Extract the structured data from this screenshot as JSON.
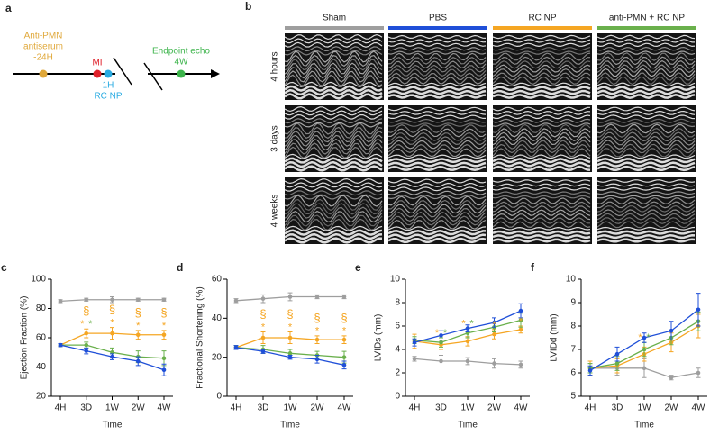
{
  "panel_a": {
    "letter": "a",
    "pretreatment": [
      "Anti-PMN",
      "antiserum",
      "-24H"
    ],
    "mi": "MI",
    "treatment": [
      "1H",
      "RC NP"
    ],
    "endpoint": [
      "Endpoint echo",
      "4W"
    ]
  },
  "panel_b": {
    "letter": "b",
    "columns": [
      {
        "label": "Sham",
        "color": "#9e9e9e"
      },
      {
        "label": "PBS",
        "color": "#1f4fd8"
      },
      {
        "label": "RC NP",
        "color": "#f5a623"
      },
      {
        "label": "anti-PMN + RC NP",
        "color": "#6ab04c"
      }
    ],
    "rows": [
      "4 hours",
      "3 days",
      "4 weeks"
    ]
  },
  "chart_data": [
    {
      "letter": "c",
      "type": "line",
      "ylabel": "Ejection Fraction (%)",
      "xlabel": "Time",
      "categories": [
        "4H",
        "3D",
        "1W",
        "2W",
        "4W"
      ],
      "ylim": [
        20,
        100
      ],
      "yticks": [
        20,
        40,
        60,
        80,
        100
      ],
      "series": [
        {
          "color": "#9e9e9e",
          "values": [
            85,
            86,
            86,
            86,
            86
          ],
          "errors": [
            1,
            1,
            2,
            1,
            1
          ]
        },
        {
          "color": "#f5a623",
          "values": [
            55,
            63,
            63,
            62,
            62
          ],
          "errors": [
            1,
            3,
            4,
            3,
            3
          ]
        },
        {
          "color": "#6ab04c",
          "values": [
            55,
            55,
            50,
            47,
            46
          ],
          "errors": [
            1,
            2,
            3,
            4,
            5
          ]
        },
        {
          "color": "#1f4fd8",
          "values": [
            55,
            51,
            47,
            44,
            38
          ],
          "errors": [
            1,
            2,
            2,
            3,
            4
          ]
        }
      ],
      "annotations": [
        {
          "text": "*",
          "x": "3D",
          "color": "#f5a623"
        },
        {
          "text": "*",
          "x": "3D",
          "color": "#6ab04c"
        },
        {
          "text": "*",
          "x": "1W",
          "color": "#f5a623"
        },
        {
          "text": "*",
          "x": "2W",
          "color": "#f5a623"
        },
        {
          "text": "*",
          "x": "4W",
          "color": "#f5a623"
        },
        {
          "text": "§",
          "x": "3D",
          "color": "#f5a623"
        },
        {
          "text": "§",
          "x": "1W",
          "color": "#f5a623"
        },
        {
          "text": "§",
          "x": "2W",
          "color": "#f5a623"
        },
        {
          "text": "§",
          "x": "4W",
          "color": "#f5a623"
        }
      ]
    },
    {
      "letter": "d",
      "type": "line",
      "ylabel": "Fractional Shortening (%)",
      "xlabel": "Time",
      "categories": [
        "4H",
        "3D",
        "1W",
        "2W",
        "4W"
      ],
      "ylim": [
        0,
        60
      ],
      "yticks": [
        0,
        20,
        40,
        60
      ],
      "series": [
        {
          "color": "#9e9e9e",
          "values": [
            49,
            50,
            51,
            51,
            51
          ],
          "errors": [
            1,
            2,
            2,
            1,
            1
          ]
        },
        {
          "color": "#f5a623",
          "values": [
            25,
            30,
            30,
            29,
            29
          ],
          "errors": [
            1,
            3,
            3,
            2,
            2
          ]
        },
        {
          "color": "#6ab04c",
          "values": [
            25,
            24,
            22,
            21,
            20
          ],
          "errors": [
            1,
            2,
            2,
            2,
            3
          ]
        },
        {
          "color": "#1f4fd8",
          "values": [
            25,
            23,
            20,
            19,
            16
          ],
          "errors": [
            1,
            1,
            1,
            2,
            2
          ]
        }
      ],
      "annotations": [
        {
          "text": "*",
          "x": "3D",
          "color": "#f5a623"
        },
        {
          "text": "*",
          "x": "1W",
          "color": "#f5a623"
        },
        {
          "text": "*",
          "x": "2W",
          "color": "#f5a623"
        },
        {
          "text": "*",
          "x": "4W",
          "color": "#f5a623"
        },
        {
          "text": "§",
          "x": "3D",
          "color": "#f5a623"
        },
        {
          "text": "§",
          "x": "1W",
          "color": "#f5a623"
        },
        {
          "text": "§",
          "x": "2W",
          "color": "#f5a623"
        },
        {
          "text": "§",
          "x": "4W",
          "color": "#f5a623"
        }
      ]
    },
    {
      "letter": "e",
      "type": "line",
      "ylabel": "LVIDs (mm)",
      "xlabel": "Time",
      "categories": [
        "4H",
        "3D",
        "1W",
        "2W",
        "4W"
      ],
      "ylim": [
        0,
        10
      ],
      "yticks": [
        0,
        2,
        4,
        6,
        8,
        10
      ],
      "series": [
        {
          "color": "#9e9e9e",
          "values": [
            3.2,
            3.0,
            3.0,
            2.8,
            2.7
          ],
          "errors": [
            0.2,
            0.5,
            0.3,
            0.4,
            0.3
          ]
        },
        {
          "color": "#f5a623",
          "values": [
            4.7,
            4.4,
            4.7,
            5.3,
            5.7
          ],
          "errors": [
            0.6,
            0.4,
            0.4,
            0.4,
            0.3
          ]
        },
        {
          "color": "#6ab04c",
          "values": [
            4.8,
            4.6,
            5.4,
            5.9,
            6.5
          ],
          "errors": [
            0.3,
            0.4,
            0.4,
            0.4,
            0.6
          ]
        },
        {
          "color": "#1f4fd8",
          "values": [
            4.6,
            5.2,
            5.8,
            6.3,
            7.3
          ],
          "errors": [
            0.3,
            0.4,
            0.3,
            0.4,
            0.6
          ]
        }
      ],
      "annotations": [
        {
          "text": "*",
          "x": "3D",
          "color": "#f5a623"
        },
        {
          "text": "*",
          "x": "3D",
          "color": "#6ab04c"
        },
        {
          "text": "*",
          "x": "1W",
          "color": "#f5a623"
        },
        {
          "text": "*",
          "x": "1W",
          "color": "#6ab04c"
        },
        {
          "text": "*",
          "x": "2W",
          "color": "#f5a623"
        },
        {
          "text": "*",
          "x": "4W",
          "color": "#f5a623"
        }
      ]
    },
    {
      "letter": "f",
      "type": "line",
      "ylabel": "LVIDd (mm)",
      "xlabel": "Time",
      "categories": [
        "4H",
        "3D",
        "1W",
        "2W",
        "4W"
      ],
      "ylim": [
        5,
        10
      ],
      "yticks": [
        5,
        6,
        7,
        8,
        9,
        10
      ],
      "series": [
        {
          "color": "#9e9e9e",
          "values": [
            6.2,
            6.2,
            6.2,
            5.8,
            6.0
          ],
          "errors": [
            0.2,
            0.3,
            0.4,
            0.1,
            0.2
          ]
        },
        {
          "color": "#f5a623",
          "values": [
            6.2,
            6.3,
            6.8,
            7.3,
            8.0
          ],
          "errors": [
            0.3,
            0.3,
            0.3,
            0.4,
            0.5
          ]
        },
        {
          "color": "#6ab04c",
          "values": [
            6.2,
            6.4,
            7.0,
            7.5,
            8.2
          ],
          "errors": [
            0.2,
            0.3,
            0.3,
            0.3,
            0.4
          ]
        },
        {
          "color": "#1f4fd8",
          "values": [
            6.1,
            6.8,
            7.5,
            7.8,
            8.7
          ],
          "errors": [
            0.2,
            0.3,
            0.2,
            0.4,
            0.7
          ]
        }
      ],
      "annotations": [
        {
          "text": "*",
          "x": "1W",
          "color": "#f5a623"
        },
        {
          "text": "*",
          "x": "1W",
          "color": "#6ab04c"
        }
      ]
    }
  ]
}
